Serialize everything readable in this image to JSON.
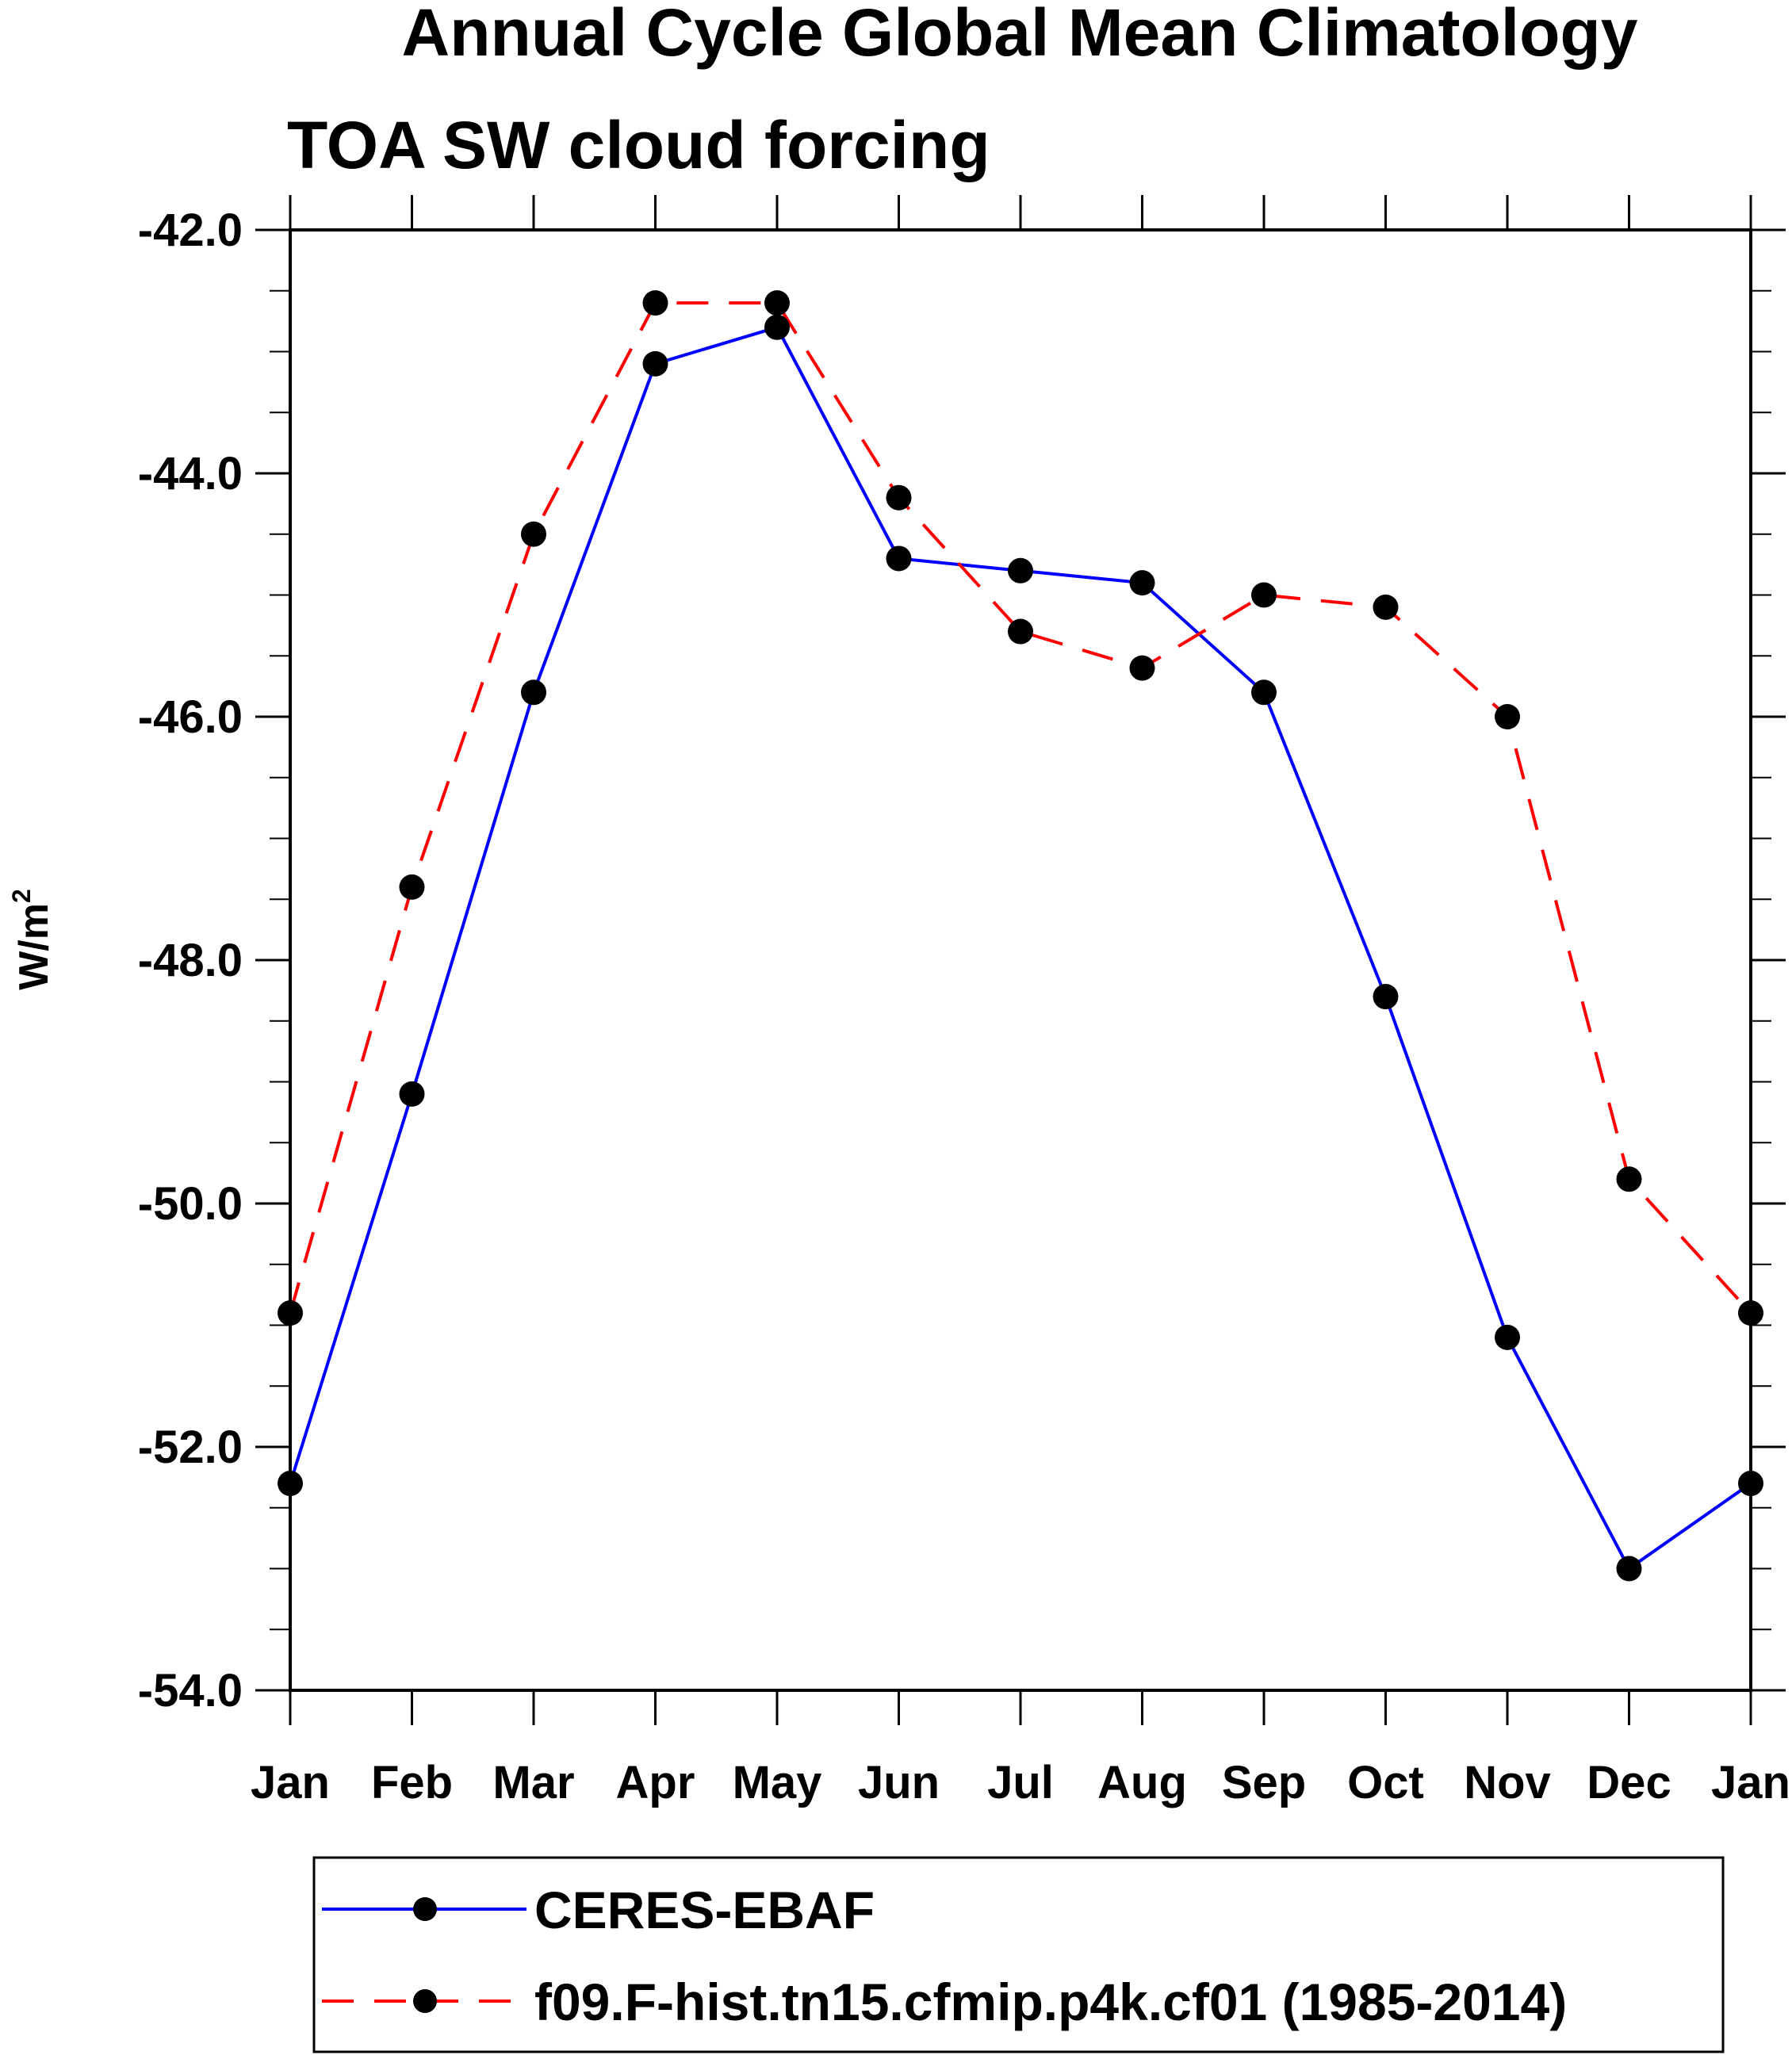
{
  "chart_data": {
    "type": "line",
    "title": "Annual Cycle Global Mean Climatology",
    "subtitle": "TOA SW cloud forcing",
    "xlabel": "",
    "ylabel": "W/m",
    "ylabel_superscript": "2",
    "categories": [
      "Jan",
      "Feb",
      "Mar",
      "Apr",
      "May",
      "Jun",
      "Jul",
      "Aug",
      "Sep",
      "Oct",
      "Nov",
      "Dec",
      "Jan"
    ],
    "yticks": [
      "-42.0",
      "-44.0",
      "-46.0",
      "-48.0",
      "-50.0",
      "-52.0",
      "-54.0"
    ],
    "ylim": [
      -54.0,
      -42.0
    ],
    "series": [
      {
        "name": "CERES-EBAF",
        "color": "#0000ff",
        "style": "solid",
        "values": [
          -52.3,
          -49.1,
          -45.8,
          -43.1,
          -42.8,
          -44.7,
          -44.8,
          -44.9,
          -45.8,
          -48.3,
          -51.1,
          -53.0,
          -52.3
        ]
      },
      {
        "name": "f09.F-hist.tn15.cfmip.p4k.cf01 (1985-2014)",
        "color": "#ff0000",
        "style": "dashed",
        "values": [
          -50.9,
          -47.4,
          -44.5,
          -42.6,
          -42.6,
          -44.2,
          -45.3,
          -45.6,
          -45.0,
          -45.1,
          -46.0,
          -49.8,
          -50.9
        ]
      }
    ],
    "legend_position": "bottom",
    "marker_color": "#000000"
  }
}
